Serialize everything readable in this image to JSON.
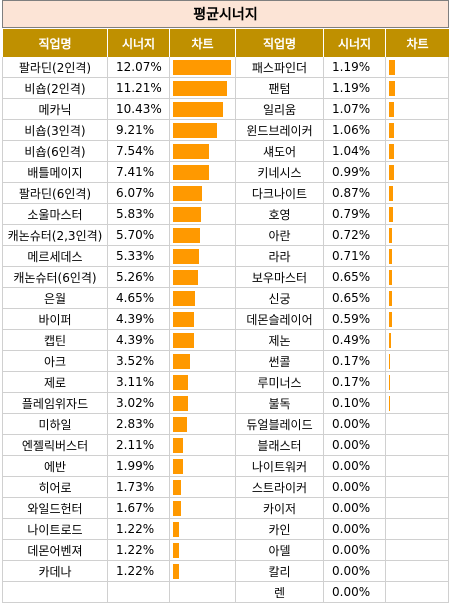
{
  "title": "평균시너지",
  "headers": {
    "left": [
      "직업명",
      "시너지",
      "차트"
    ],
    "right": [
      "직업명",
      "시너지",
      "차트"
    ]
  },
  "left_rows": [
    {
      "name": "팔라딘(2인격)",
      "value": "12.07%"
    },
    {
      "name": "비숍(2인격)",
      "value": "11.21%"
    },
    {
      "name": "메카닉",
      "value": "10.43%"
    },
    {
      "name": "비숍(3인격)",
      "value": "9.21%"
    },
    {
      "name": "비숍(6인격)",
      "value": "7.54%"
    },
    {
      "name": "배틀메이지",
      "value": "7.41%"
    },
    {
      "name": "팔라딘(6인격)",
      "value": "6.07%"
    },
    {
      "name": "소울마스터",
      "value": "5.83%"
    },
    {
      "name": "캐논슈터(2,3인격)",
      "value": "5.70%"
    },
    {
      "name": "메르세데스",
      "value": "5.33%"
    },
    {
      "name": "캐논슈터(6인격)",
      "value": "5.26%"
    },
    {
      "name": "은월",
      "value": "4.65%"
    },
    {
      "name": "바이퍼",
      "value": "4.39%"
    },
    {
      "name": "캡틴",
      "value": "4.39%"
    },
    {
      "name": "아크",
      "value": "3.52%"
    },
    {
      "name": "제로",
      "value": "3.11%"
    },
    {
      "name": "플레임위자드",
      "value": "3.02%"
    },
    {
      "name": "미하일",
      "value": "2.83%"
    },
    {
      "name": "엔젤릭버스터",
      "value": "2.11%"
    },
    {
      "name": "에반",
      "value": "1.99%"
    },
    {
      "name": "히어로",
      "value": "1.73%"
    },
    {
      "name": "와일드헌터",
      "value": "1.67%"
    },
    {
      "name": "나이트로드",
      "value": "1.22%"
    },
    {
      "name": "데몬어벤져",
      "value": "1.22%"
    },
    {
      "name": "카데나",
      "value": "1.22%"
    }
  ],
  "right_rows": [
    {
      "name": "패스파인더",
      "value": "1.19%"
    },
    {
      "name": "팬텀",
      "value": "1.19%"
    },
    {
      "name": "일리움",
      "value": "1.07%"
    },
    {
      "name": "윈드브레이커",
      "value": "1.06%"
    },
    {
      "name": "섀도어",
      "value": "1.04%"
    },
    {
      "name": "키네시스",
      "value": "0.99%"
    },
    {
      "name": "다크나이트",
      "value": "0.87%"
    },
    {
      "name": "호영",
      "value": "0.79%"
    },
    {
      "name": "아란",
      "value": "0.72%"
    },
    {
      "name": "라라",
      "value": "0.71%"
    },
    {
      "name": "보우마스터",
      "value": "0.65%"
    },
    {
      "name": "신궁",
      "value": "0.65%"
    },
    {
      "name": "데몬슬레이어",
      "value": "0.59%"
    },
    {
      "name": "제논",
      "value": "0.49%"
    },
    {
      "name": "썬콜",
      "value": "0.17%"
    },
    {
      "name": "루미너스",
      "value": "0.17%"
    },
    {
      "name": "불독",
      "value": "0.10%"
    },
    {
      "name": "듀얼블레이드",
      "value": "0.00%"
    },
    {
      "name": "블래스터",
      "value": "0.00%"
    },
    {
      "name": "나이트워커",
      "value": "0.00%"
    },
    {
      "name": "스트라이커",
      "value": "0.00%"
    },
    {
      "name": "카이저",
      "value": "0.00%"
    },
    {
      "name": "카인",
      "value": "0.00%"
    },
    {
      "name": "아델",
      "value": "0.00%"
    },
    {
      "name": "칼리",
      "value": "0.00%"
    },
    {
      "name": "렌",
      "value": "0.00%"
    }
  ],
  "colors": {
    "header_bg": "#bf9000",
    "title_bg": "#fce4d6",
    "bar": "#ff9900"
  }
}
